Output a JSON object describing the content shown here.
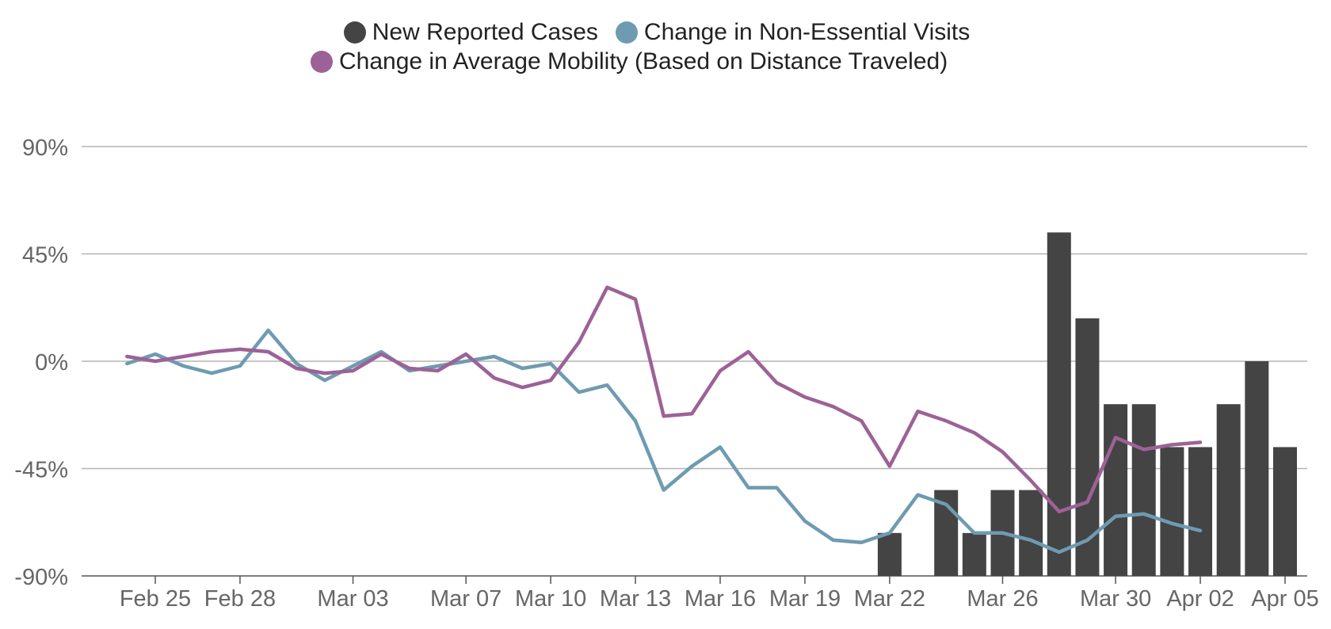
{
  "chart_data": {
    "type": "bar",
    "y_ticks": [
      {
        "value": 90,
        "label": "90%"
      },
      {
        "value": 45,
        "label": "45%"
      },
      {
        "value": 0,
        "label": "0%"
      },
      {
        "value": -45,
        "label": "-45%"
      },
      {
        "value": -90,
        "label": "-90%"
      }
    ],
    "ylim": [
      -90,
      90
    ],
    "x_start": "Feb 24",
    "x_end": "Apr 05",
    "x_ticks": [
      "Feb 25",
      "Feb 28",
      "Mar 03",
      "Mar 07",
      "Mar 10",
      "Mar 13",
      "Mar 16",
      "Mar 19",
      "Mar 22",
      "Mar 26",
      "Mar 30",
      "Apr 02",
      "Apr 05"
    ],
    "x_tick_dates": [
      "2020-02-25",
      "2020-02-28",
      "2020-03-03",
      "2020-03-07",
      "2020-03-10",
      "2020-03-13",
      "2020-03-16",
      "2020-03-19",
      "2020-03-22",
      "2020-03-26",
      "2020-03-30",
      "2020-04-02",
      "2020-04-05"
    ],
    "grid": true,
    "legend_position": "top-center",
    "series": [
      {
        "name": "New Reported Cases",
        "kind": "bar",
        "color": "#444444",
        "dates": [
          "2020-03-22",
          "2020-03-23",
          "2020-03-24",
          "2020-03-25",
          "2020-03-26",
          "2020-03-27",
          "2020-03-28",
          "2020-03-29",
          "2020-03-30",
          "2020-03-31",
          "2020-04-01",
          "2020-04-02",
          "2020-04-03",
          "2020-04-04",
          "2020-04-05"
        ],
        "values": [
          -72,
          null,
          -54,
          -72,
          -54,
          -54,
          54,
          18,
          -18,
          -18,
          -36,
          -36,
          -18,
          0,
          -36
        ]
      },
      {
        "name": "Change in Non-Essential Visits",
        "kind": "line",
        "color": "#6e9bb1",
        "dates": [
          "2020-02-24",
          "2020-02-25",
          "2020-02-26",
          "2020-02-27",
          "2020-02-28",
          "2020-02-29",
          "2020-03-01",
          "2020-03-02",
          "2020-03-03",
          "2020-03-04",
          "2020-03-05",
          "2020-03-06",
          "2020-03-07",
          "2020-03-08",
          "2020-03-09",
          "2020-03-10",
          "2020-03-11",
          "2020-03-12",
          "2020-03-13",
          "2020-03-14",
          "2020-03-15",
          "2020-03-16",
          "2020-03-17",
          "2020-03-18",
          "2020-03-19",
          "2020-03-20",
          "2020-03-21",
          "2020-03-22",
          "2020-03-23",
          "2020-03-24",
          "2020-03-25",
          "2020-03-26",
          "2020-03-27",
          "2020-03-28",
          "2020-03-29",
          "2020-03-30",
          "2020-03-31",
          "2020-04-01",
          "2020-04-02"
        ],
        "values": [
          -1,
          3,
          -2,
          -5,
          -2,
          13,
          -1,
          -8,
          -2,
          4,
          -4,
          -2,
          0,
          2,
          -3,
          -1,
          -13,
          -10,
          -25,
          -54,
          -44,
          -36,
          -53,
          -53,
          -67,
          -75,
          -76,
          -72,
          -56,
          -60,
          -72,
          -72,
          -75,
          -80,
          -75,
          -65,
          -64,
          -68,
          -71
        ]
      },
      {
        "name": "Change in Average Mobility (Based on Distance Traveled)",
        "kind": "line",
        "color": "#9c6297",
        "dates": [
          "2020-02-24",
          "2020-02-25",
          "2020-02-26",
          "2020-02-27",
          "2020-02-28",
          "2020-02-29",
          "2020-03-01",
          "2020-03-02",
          "2020-03-03",
          "2020-03-04",
          "2020-03-05",
          "2020-03-06",
          "2020-03-07",
          "2020-03-08",
          "2020-03-09",
          "2020-03-10",
          "2020-03-11",
          "2020-03-12",
          "2020-03-13",
          "2020-03-14",
          "2020-03-15",
          "2020-03-16",
          "2020-03-17",
          "2020-03-18",
          "2020-03-19",
          "2020-03-20",
          "2020-03-21",
          "2020-03-22",
          "2020-03-23",
          "2020-03-24",
          "2020-03-25",
          "2020-03-26",
          "2020-03-27",
          "2020-03-28",
          "2020-03-29",
          "2020-03-30",
          "2020-03-31",
          "2020-04-01",
          "2020-04-02"
        ],
        "values": [
          2,
          0,
          2,
          4,
          5,
          4,
          -3,
          -5,
          -4,
          3,
          -3,
          -4,
          3,
          -7,
          -11,
          -8,
          8,
          31,
          26,
          -23,
          -22,
          -4,
          4,
          -9,
          -15,
          -19,
          -25,
          -44,
          -21,
          -25,
          -30,
          -38,
          -50,
          -63,
          -59,
          -32,
          -37,
          -35,
          -34
        ]
      }
    ]
  }
}
